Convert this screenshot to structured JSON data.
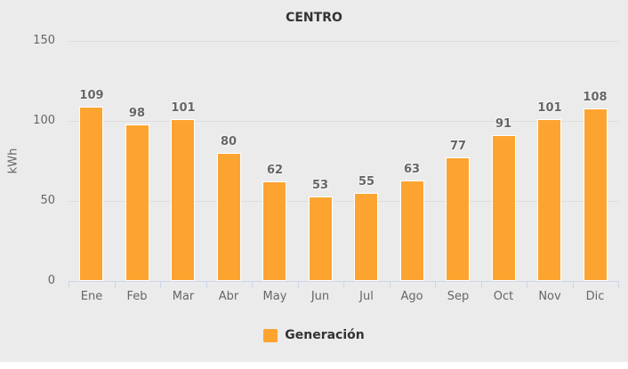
{
  "title": "CENTRO",
  "legend": {
    "label": "Generación"
  },
  "colors": {
    "background": "#ebebeb",
    "bar": "#FCA42F",
    "bar_border": "#ffffff",
    "gridline": "#dddddd",
    "axis_line": "#ccd6eb",
    "label_muted": "#666666",
    "label_dark": "#333333"
  },
  "chart_data": {
    "type": "bar",
    "title": "CENTRO",
    "categories": [
      "Ene",
      "Feb",
      "Mar",
      "Abr",
      "May",
      "Jun",
      "Jul",
      "Ago",
      "Sep",
      "Oct",
      "Nov",
      "Dic"
    ],
    "series": [
      {
        "name": "Generación",
        "color": "#FCA42F",
        "values": [
          109,
          98,
          101,
          80,
          62,
          53,
          55,
          63,
          77,
          91,
          101,
          108
        ]
      }
    ],
    "xlabel": "",
    "ylabel": "kWh",
    "ylim": [
      0,
      150
    ],
    "yticks": [
      0,
      50,
      100,
      150
    ],
    "grid": true,
    "data_labels": true,
    "legend_position": "bottom"
  }
}
